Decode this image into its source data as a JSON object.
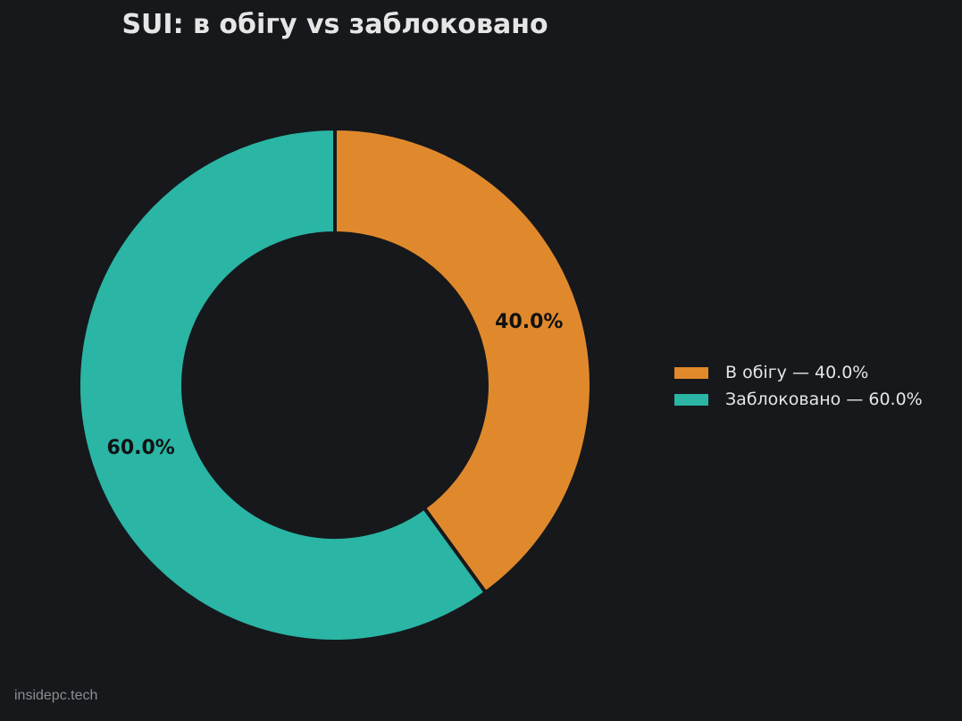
{
  "chart_data": {
    "type": "pie",
    "variant": "donut",
    "title": "SUI: в обігу vs заблоковано",
    "categories": [
      "В обігу",
      "Заблоковано"
    ],
    "values": [
      40.0,
      60.0
    ],
    "slice_labels": [
      "40.0%",
      "60.0%"
    ],
    "legend_labels": [
      "В обігу — 40.0%",
      "Заблоковано — 60.0%"
    ],
    "colors": [
      "#e0892c",
      "#2ab5a5"
    ],
    "legend_position": "right",
    "start": "top",
    "direction": "clockwise"
  },
  "watermark": "insidepc.tech",
  "colors": {
    "background": "#16181b",
    "title": "#e6e6e6",
    "slice_label": "#111111",
    "legend_text": "#e6e6e6",
    "watermark": "#8a8d91"
  }
}
